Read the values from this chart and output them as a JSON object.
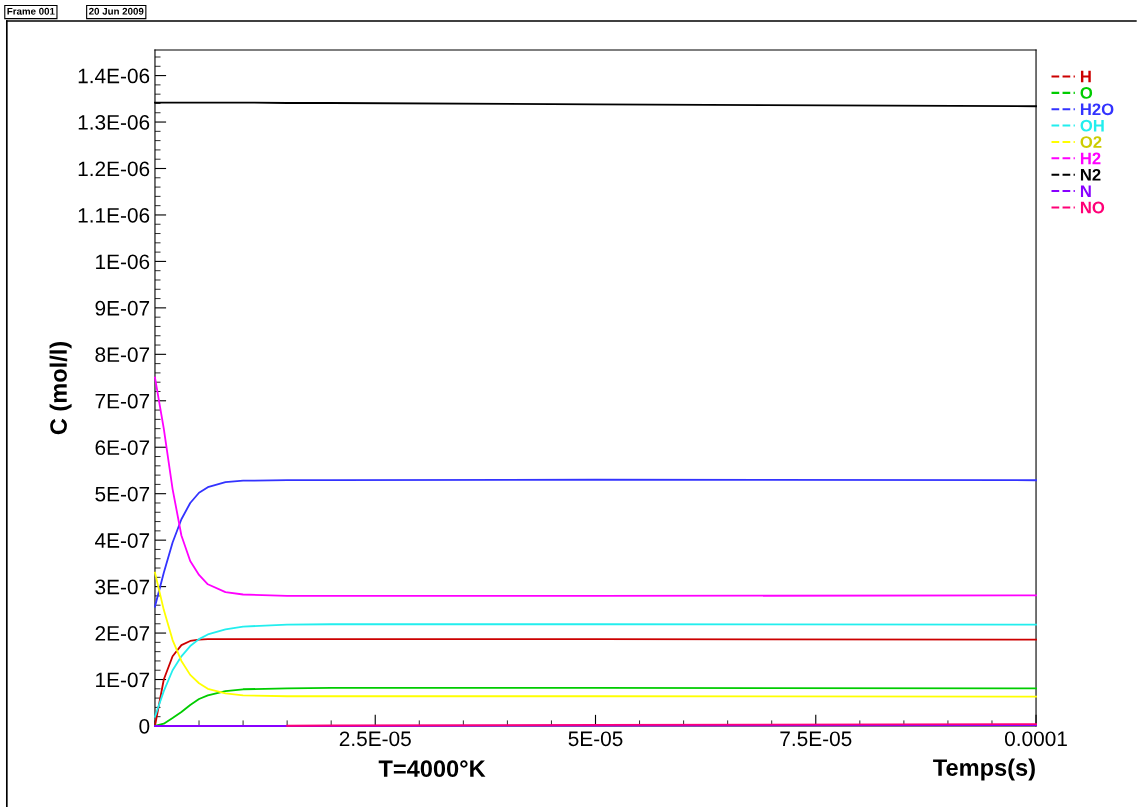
{
  "chart_data": {
    "type": "line",
    "annotations": [
      "Frame 001",
      "20 Jun 2009",
      "T=4000°K"
    ],
    "xlabel": "Temps(s)",
    "ylabel": "C (mol/l)",
    "x": [
      0,
      1e-06,
      2e-06,
      3e-06,
      4e-06,
      5e-06,
      6e-06,
      8e-06,
      1e-05,
      1.5e-05,
      2e-05,
      5e-05,
      0.0001
    ],
    "series": [
      {
        "name": "H",
        "color": "#cc0000",
        "values": [
          0,
          1e-07,
          1.5e-07,
          1.74e-07,
          1.83e-07,
          1.86e-07,
          1.87e-07,
          1.87e-07,
          1.87e-07,
          1.87e-07,
          1.87e-07,
          1.87e-07,
          1.86e-07
        ]
      },
      {
        "name": "O",
        "color": "#00cc00",
        "values": [
          0,
          5e-09,
          1.7e-08,
          3e-08,
          4.5e-08,
          5.8e-08,
          6.6e-08,
          7.5e-08,
          7.9e-08,
          8.1e-08,
          8.2e-08,
          8.2e-08,
          8.1e-08
        ]
      },
      {
        "name": "H2O",
        "color": "#3333ff",
        "values": [
          2.57e-07,
          3.3e-07,
          3.95e-07,
          4.45e-07,
          4.8e-07,
          5.02e-07,
          5.14e-07,
          5.25e-07,
          5.28e-07,
          5.29e-07,
          5.29e-07,
          5.3e-07,
          5.29e-07
        ]
      },
      {
        "name": "OH",
        "color": "#22eeee",
        "values": [
          2e-08,
          7.5e-08,
          1.2e-07,
          1.5e-07,
          1.72e-07,
          1.87e-07,
          1.97e-07,
          2.08e-07,
          2.14e-07,
          2.18e-07,
          2.19e-07,
          2.19e-07,
          2.18e-07
        ]
      },
      {
        "name": "O2",
        "color": "#ffff00",
        "values": [
          3.3e-07,
          2.5e-07,
          1.85e-07,
          1.4e-07,
          1.1e-07,
          9.2e-08,
          8e-08,
          7e-08,
          6.6e-08,
          6.4e-08,
          6.4e-08,
          6.4e-08,
          6.3e-08
        ]
      },
      {
        "name": "H2",
        "color": "#ff00ff",
        "values": [
          7.5e-07,
          6.4e-07,
          5.1e-07,
          4.1e-07,
          3.55e-07,
          3.25e-07,
          3.05e-07,
          2.88e-07,
          2.83e-07,
          2.8e-07,
          2.8e-07,
          2.8e-07,
          2.81e-07
        ]
      },
      {
        "name": "N2",
        "color": "#000000",
        "values": [
          1.342e-06,
          1.342e-06,
          1.342e-06,
          1.342e-06,
          1.342e-06,
          1.342e-06,
          1.342e-06,
          1.342e-06,
          1.342e-06,
          1.341e-06,
          1.341e-06,
          1.338e-06,
          1.334e-06
        ]
      },
      {
        "name": "N",
        "color": "#8800ff",
        "values": [
          0,
          0,
          0,
          0,
          0,
          0,
          0,
          0,
          0,
          0,
          0,
          1e-09,
          2e-09
        ]
      },
      {
        "name": "NO",
        "color": "#ff0077",
        "values": [
          null,
          null,
          null,
          null,
          null,
          null,
          null,
          null,
          null,
          5e-10,
          1e-09,
          2.5e-09,
          4e-09
        ]
      }
    ],
    "xlim": [
      0,
      0.0001
    ],
    "xticks": [
      {
        "value": 2.5e-05,
        "label": "2.5E-05"
      },
      {
        "value": 5e-05,
        "label": "5E-05"
      },
      {
        "value": 7.5e-05,
        "label": "7.5E-05"
      },
      {
        "value": 0.0001,
        "label": "0.0001"
      }
    ],
    "ylim": [
      0,
      1.455e-06
    ],
    "yticks": [
      0,
      {
        "value": 1e-07,
        "label": "1E-07"
      },
      {
        "value": 2e-07,
        "label": "2E-07"
      },
      {
        "value": 3e-07,
        "label": "3E-07"
      },
      {
        "value": 4e-07,
        "label": "4E-07"
      },
      {
        "value": 5e-07,
        "label": "5E-07"
      },
      {
        "value": 6e-07,
        "label": "6E-07"
      },
      {
        "value": 7e-07,
        "label": "7E-07"
      },
      {
        "value": 8e-07,
        "label": "8E-07"
      },
      {
        "value": 9e-07,
        "label": "9E-07"
      },
      {
        "value": 1e-06,
        "label": "1E-06"
      },
      {
        "value": 1.1e-06,
        "label": "1.1E-06"
      },
      {
        "value": 1.2e-06,
        "label": "1.2E-06"
      },
      {
        "value": 1.3e-06,
        "label": "1.3E-06"
      },
      {
        "value": 1.4e-06,
        "label": "1.4E-06"
      }
    ],
    "grid": false,
    "legend": "top right",
    "marker": "none",
    "line_style": "solid"
  }
}
